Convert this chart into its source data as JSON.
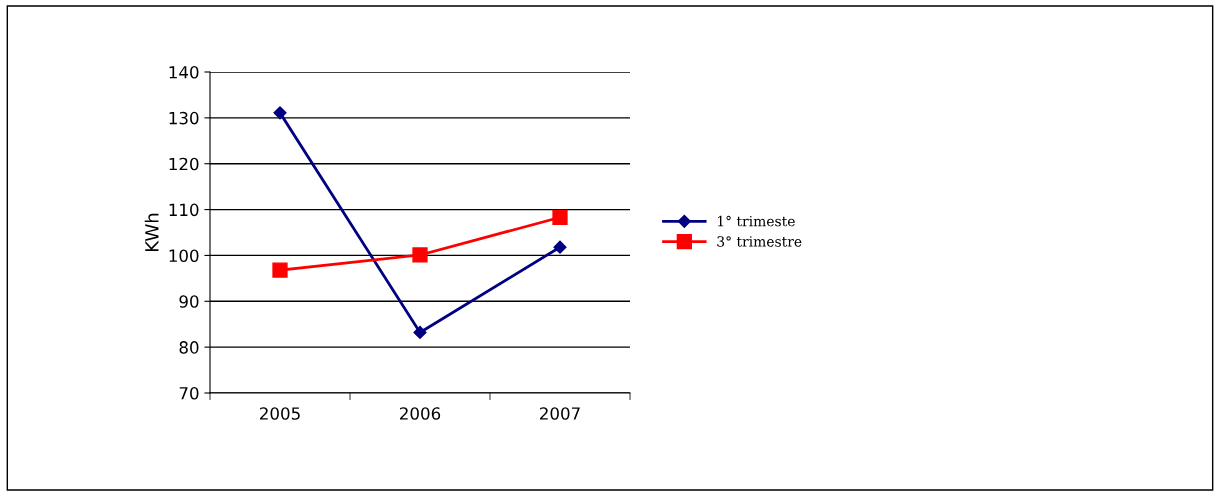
{
  "chart_data": {
    "type": "line",
    "ylabel": "KWh",
    "categories": [
      "2005",
      "2006",
      "2007"
    ],
    "series": [
      {
        "name": "1° trimeste",
        "color": "#000080",
        "marker": "diamond",
        "values": [
          131.1,
          83.2,
          101.8
        ]
      },
      {
        "name": "3° trimestre",
        "color": "#ff0000",
        "marker": "square",
        "values": [
          96.8,
          100.1,
          108.3
        ]
      }
    ],
    "ylim": [
      70,
      140
    ],
    "yticks": [
      70,
      80,
      90,
      100,
      110,
      120,
      130,
      140
    ],
    "grid": "y",
    "legend": "right",
    "line_style": "solid"
  }
}
